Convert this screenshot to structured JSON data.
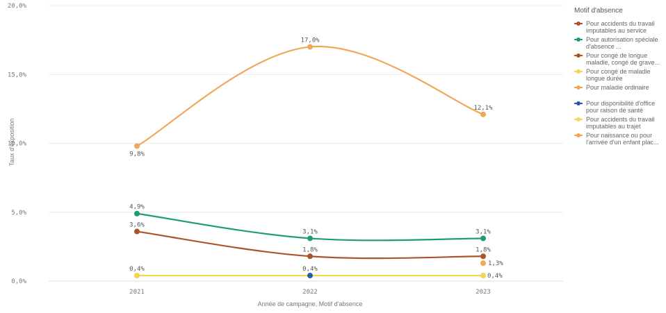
{
  "chart_data": {
    "type": "line",
    "xlabel": "Année de campagne, Motif d'absence",
    "ylabel": "Taux d'exposition",
    "x": [
      "2021",
      "2022",
      "2023"
    ],
    "ylim": [
      0,
      20
    ],
    "yticks": [
      "0,0%",
      "5,0%",
      "10,0%",
      "15,0%",
      "20,0%"
    ],
    "grid": true,
    "legend_title": "Motif d'absence",
    "legend_position": "right",
    "series": [
      {
        "name": "Pour accidents du travail imputables au service",
        "legend_label": "Pour accidents du travail imputables au service",
        "color": "#a9552b",
        "values": [
          3.6,
          1.8,
          1.8
        ],
        "labels": [
          "3,6%",
          "1,8%",
          "1,8%"
        ]
      },
      {
        "name": "Pour autorisation spéciale d'absence ...",
        "legend_label": "Pour autorisation spéciale d'absence ...",
        "color": "#1f9e6c",
        "values": [
          4.9,
          3.1,
          3.1
        ],
        "labels": [
          "4,9%",
          "3,1%",
          "3,1%"
        ]
      },
      {
        "name": "Pour congé de longue maladie, congé de grave...",
        "legend_label": "Pour congé de longue maladie, congé de grave...",
        "color": "#a9552b",
        "values": [
          null,
          null,
          null
        ],
        "labels": [
          null,
          null,
          null
        ]
      },
      {
        "name": "Pour congé de maladie longue durée",
        "legend_label": "Pour congé de maladie longue durée",
        "color": "#f2d64b",
        "values": [
          0.4,
          null,
          0.4
        ],
        "labels": [
          "0,4%",
          null,
          "0,4%"
        ]
      },
      {
        "name": "Pour maladie ordinaire",
        "legend_label": "Pour maladie ordinaire",
        "color": "#f0a758",
        "values": [
          9.8,
          17.0,
          12.1
        ],
        "labels": [
          "9,8%",
          "17,0%",
          "12,1%"
        ]
      },
      {
        "name": "Pour disponibilité d'office pour raison de santé",
        "legend_label": "Pour disponibilité d'office pour raison de santé",
        "color": "#1f5fa8",
        "values": [
          null,
          0.4,
          null
        ],
        "labels": [
          null,
          "0,4%",
          null
        ]
      },
      {
        "name": "Pour accidents du travail imputables au trajet",
        "legend_label": "Pour accidents du travail imputables au trajet",
        "color": "#f2d64b",
        "values": [
          null,
          null,
          null
        ],
        "labels": [
          null,
          null,
          null
        ]
      },
      {
        "name": "Pour naissance ou pour l'arrivée d'un enfant plac...",
        "legend_label": "Pour naissance ou pour l'arrivée d'un enfant plac...",
        "color": "#f0a758",
        "values": [
          null,
          null,
          1.3
        ],
        "labels": [
          null,
          null,
          "1,3%"
        ]
      }
    ]
  }
}
